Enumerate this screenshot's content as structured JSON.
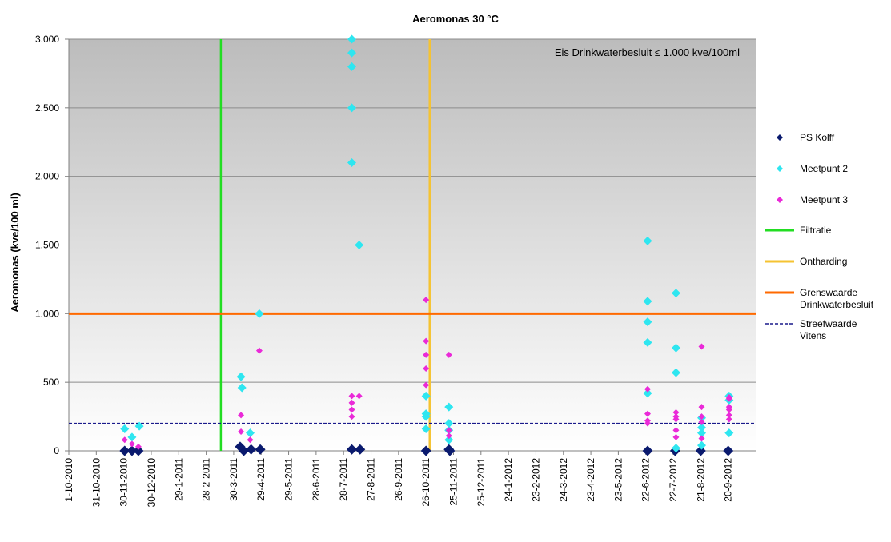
{
  "chart_data": {
    "type": "scatter",
    "title": "Aeromonas  30 °C",
    "ylabel": "Aeromonas  (kve/100 ml)",
    "xlabel": "",
    "annotation": "Eis Drinkwaterbesluit ≤ 1.000 kve/100ml",
    "ylim": [
      0,
      3000
    ],
    "yticks": [
      0,
      500,
      1000,
      1500,
      2000,
      2500,
      3000
    ],
    "ytick_labels": [
      "0",
      "500",
      "1.000",
      "1.500",
      "2.000",
      "2.500",
      "3.000"
    ],
    "xlim": [
      "2010-10-01",
      "2012-10-20"
    ],
    "xtick_labels": [
      "1-10-2010",
      "31-10-2010",
      "30-11-2010",
      "30-12-2010",
      "29-1-2011",
      "28-2-2011",
      "30-3-2011",
      "29-4-2011",
      "29-5-2011",
      "28-6-2011",
      "28-7-2011",
      "27-8-2011",
      "26-9-2011",
      "26-10-2011",
      "25-11-2011",
      "25-12-2011",
      "24-1-2012",
      "23-2-2012",
      "24-3-2012",
      "23-4-2012",
      "23-5-2012",
      "22-6-2012",
      "22-7-2012",
      "21-8-2012",
      "20-9-2012"
    ],
    "grid": "horizontal",
    "legend_position": "right",
    "series": [
      {
        "name": "PS Kolff",
        "marker": "diamond",
        "color": "#0a1a6e",
        "points": [
          [
            "2010-12-01",
            0
          ],
          [
            "2010-12-09",
            0
          ],
          [
            "2010-12-16",
            0
          ],
          [
            "2011-04-06",
            30
          ],
          [
            "2011-04-10",
            0
          ],
          [
            "2011-04-18",
            10
          ],
          [
            "2011-04-28",
            10
          ],
          [
            "2011-08-06",
            10
          ],
          [
            "2011-08-15",
            10
          ],
          [
            "2011-10-26",
            0
          ],
          [
            "2011-11-20",
            10
          ],
          [
            "2011-11-21",
            0
          ],
          [
            "2012-06-24",
            0
          ],
          [
            "2012-07-24",
            0
          ],
          [
            "2012-08-21",
            0
          ],
          [
            "2012-09-20",
            0
          ]
        ]
      },
      {
        "name": "Meetpunt 2",
        "marker": "diamond",
        "color": "#2ee6f0",
        "points": [
          [
            "2010-12-01",
            160
          ],
          [
            "2010-12-09",
            100
          ],
          [
            "2010-12-17",
            180
          ],
          [
            "2011-04-07",
            540
          ],
          [
            "2011-04-08",
            460
          ],
          [
            "2011-04-17",
            130
          ],
          [
            "2011-04-27",
            1000
          ],
          [
            "2011-08-06",
            3000
          ],
          [
            "2011-08-06",
            2900
          ],
          [
            "2011-08-06",
            2800
          ],
          [
            "2011-08-06",
            2500
          ],
          [
            "2011-08-06",
            2100
          ],
          [
            "2011-08-14",
            1500
          ],
          [
            "2011-10-26",
            400
          ],
          [
            "2011-10-26",
            270
          ],
          [
            "2011-10-26",
            250
          ],
          [
            "2011-10-26",
            160
          ],
          [
            "2011-11-20",
            320
          ],
          [
            "2011-11-20",
            200
          ],
          [
            "2011-11-20",
            150
          ],
          [
            "2011-11-20",
            80
          ],
          [
            "2012-06-24",
            1530
          ],
          [
            "2012-06-24",
            1090
          ],
          [
            "2012-06-24",
            940
          ],
          [
            "2012-06-24",
            790
          ],
          [
            "2012-06-24",
            420
          ],
          [
            "2012-07-25",
            1150
          ],
          [
            "2012-07-25",
            750
          ],
          [
            "2012-07-25",
            570
          ],
          [
            "2012-07-25",
            20
          ],
          [
            "2012-08-22",
            240
          ],
          [
            "2012-08-22",
            170
          ],
          [
            "2012-08-22",
            130
          ],
          [
            "2012-08-22",
            40
          ],
          [
            "2012-09-21",
            400
          ],
          [
            "2012-09-21",
            370
          ],
          [
            "2012-09-21",
            130
          ]
        ]
      },
      {
        "name": "Meetpunt 3",
        "marker": "diamond",
        "color": "#ea2ad8",
        "points": [
          [
            "2010-12-01",
            80
          ],
          [
            "2010-12-09",
            50
          ],
          [
            "2010-12-16",
            30
          ],
          [
            "2011-04-07",
            260
          ],
          [
            "2011-04-07",
            140
          ],
          [
            "2011-04-17",
            80
          ],
          [
            "2011-04-27",
            730
          ],
          [
            "2011-08-06",
            400
          ],
          [
            "2011-08-06",
            350
          ],
          [
            "2011-08-06",
            300
          ],
          [
            "2011-08-06",
            250
          ],
          [
            "2011-08-14",
            400
          ],
          [
            "2011-10-26",
            1100
          ],
          [
            "2011-10-26",
            800
          ],
          [
            "2011-10-26",
            700
          ],
          [
            "2011-10-26",
            600
          ],
          [
            "2011-10-26",
            480
          ],
          [
            "2011-11-20",
            700
          ],
          [
            "2011-11-20",
            150
          ],
          [
            "2011-11-20",
            110
          ],
          [
            "2012-06-24",
            450
          ],
          [
            "2012-06-24",
            270
          ],
          [
            "2012-06-24",
            220
          ],
          [
            "2012-06-24",
            200
          ],
          [
            "2012-07-25",
            280
          ],
          [
            "2012-07-25",
            250
          ],
          [
            "2012-07-25",
            230
          ],
          [
            "2012-07-25",
            150
          ],
          [
            "2012-07-25",
            100
          ],
          [
            "2012-08-22",
            760
          ],
          [
            "2012-08-22",
            320
          ],
          [
            "2012-08-22",
            250
          ],
          [
            "2012-08-22",
            210
          ],
          [
            "2012-08-22",
            90
          ],
          [
            "2012-09-21",
            390
          ],
          [
            "2012-09-21",
            380
          ],
          [
            "2012-09-21",
            320
          ],
          [
            "2012-09-21",
            300
          ],
          [
            "2012-09-21",
            260
          ],
          [
            "2012-09-21",
            230
          ]
        ]
      }
    ],
    "vertical_lines": [
      {
        "name": "Filtratie",
        "date": "2011-03-16",
        "color": "#22dd22"
      },
      {
        "name": "Ontharding",
        "date": "2011-10-30",
        "color": "#f5c332"
      }
    ],
    "horizontal_lines": [
      {
        "name": "Grenswaarde\nDrinkwaterbesluit",
        "value": 1000,
        "color": "#ff6a00",
        "style": "solid"
      },
      {
        "name": "Streefwaarde\nVitens",
        "value": 200,
        "color": "#1a1a8c",
        "style": "dashed"
      }
    ]
  }
}
